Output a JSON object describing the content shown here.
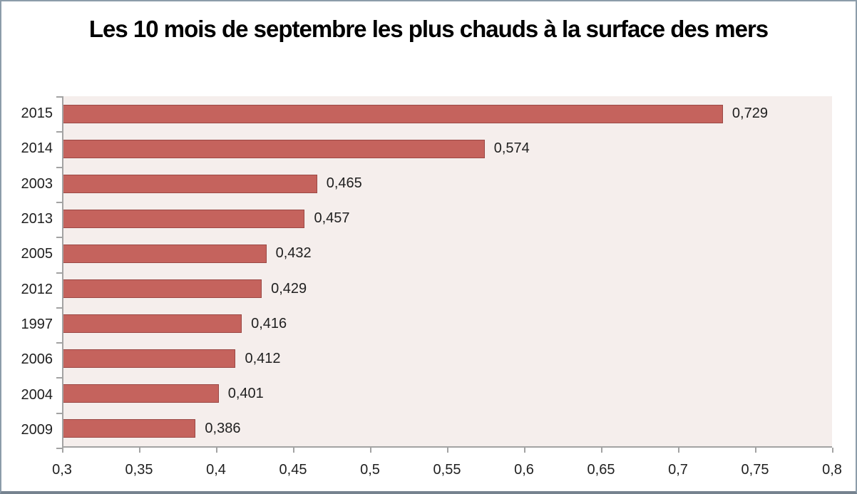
{
  "window": {
    "background": "#FFFFFF",
    "border_color": "#8C9CAA"
  },
  "chart_data": {
    "type": "bar",
    "orientation": "horizontal",
    "title": "Les 10 mois de septembre les plus chauds à la surface des mers",
    "categories": [
      "2015",
      "2014",
      "2003",
      "2013",
      "2005",
      "2012",
      "1997",
      "2006",
      "2004",
      "2009"
    ],
    "values": [
      0.729,
      0.574,
      0.465,
      0.457,
      0.432,
      0.429,
      0.416,
      0.412,
      0.401,
      0.386
    ],
    "value_labels": [
      "0,729",
      "0,574",
      "0,465",
      "0,457",
      "0,432",
      "0,429",
      "0,416",
      "0,412",
      "0,401",
      "0,386"
    ],
    "xlabel": "",
    "ylabel": "",
    "xlim": [
      0.3,
      0.8
    ],
    "x_ticks": [
      0.3,
      0.35,
      0.4,
      0.45,
      0.5,
      0.55,
      0.6,
      0.65,
      0.7,
      0.75,
      0.8
    ],
    "x_tick_labels": [
      "0,3",
      "0,35",
      "0,4",
      "0,45",
      "0,5",
      "0,55",
      "0,6",
      "0,65",
      "0,7",
      "0,75",
      "0,8"
    ],
    "grid": false,
    "legend": false,
    "colors": {
      "bar_fill": "#C5635D",
      "bar_border": "#9B4845",
      "plot_background": "#F5EEEC",
      "axis_line": "#A3A3A3",
      "text": "#1F1F1F",
      "title_text": "#000000"
    }
  }
}
